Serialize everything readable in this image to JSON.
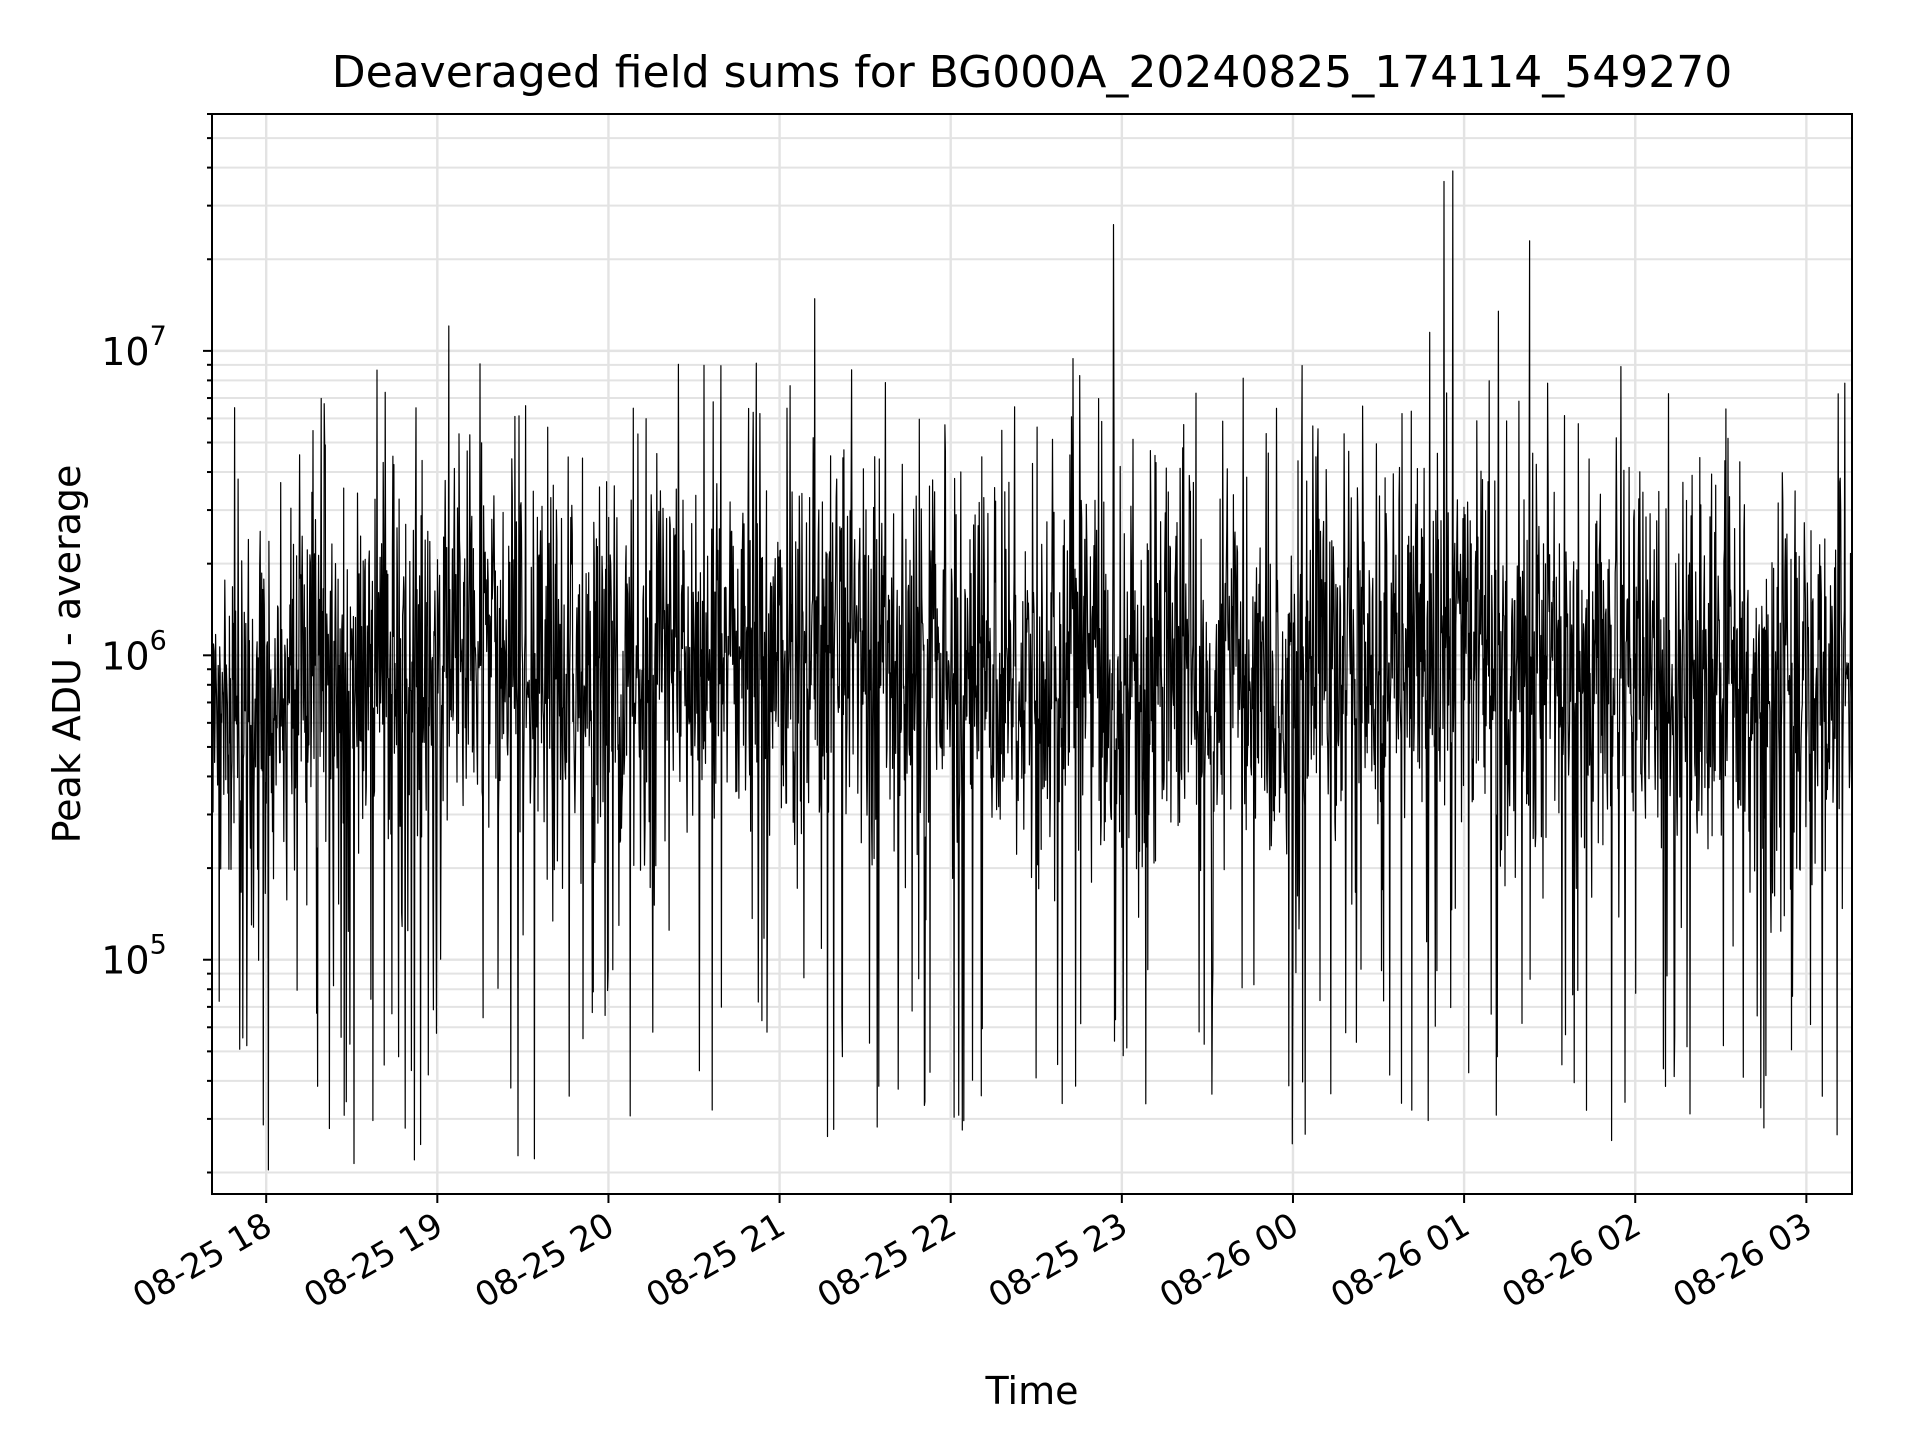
{
  "chart_data": {
    "type": "line",
    "title": "Deaveraged field sums for BG000A_20240825_174114_549270",
    "xlabel": "Time",
    "ylabel": "Peak ADU - average",
    "yscale": "log",
    "ylim": [
      17000,
      60000000
    ],
    "xlim": [
      "2024-08-25 17:41",
      "2024-08-26 03:16"
    ],
    "grid": true,
    "x_tick_labels": [
      "08-25 18",
      "08-25 19",
      "08-25 20",
      "08-25 21",
      "08-25 22",
      "08-25 23",
      "08-26 00",
      "08-26 01",
      "08-26 02",
      "08-26 03"
    ],
    "y_ticks": [
      {
        "base": "10",
        "exp": "5",
        "value": 100000
      },
      {
        "base": "10",
        "exp": "6",
        "value": 1000000
      },
      {
        "base": "10",
        "exp": "7",
        "value": 10000000
      }
    ],
    "series": [
      {
        "color": "#000000",
        "x": [
          "2024-08-25 17:41",
          "2024-08-25 17:50",
          "2024-08-25 18:00",
          "2024-08-25 18:10",
          "2024-08-25 18:20",
          "2024-08-25 18:30",
          "2024-08-25 18:40",
          "2024-08-25 18:50",
          "2024-08-25 19:00",
          "2024-08-25 19:10",
          "2024-08-25 19:20",
          "2024-08-25 19:30",
          "2024-08-25 19:40",
          "2024-08-25 19:50",
          "2024-08-25 20:00",
          "2024-08-25 20:10",
          "2024-08-25 20:20",
          "2024-08-25 20:30",
          "2024-08-25 20:40",
          "2024-08-25 20:50",
          "2024-08-25 21:00",
          "2024-08-25 21:10",
          "2024-08-25 21:20",
          "2024-08-25 21:30",
          "2024-08-25 21:40",
          "2024-08-25 21:50",
          "2024-08-25 22:00",
          "2024-08-25 22:10",
          "2024-08-25 22:20",
          "2024-08-25 22:30",
          "2024-08-25 22:40",
          "2024-08-25 22:50",
          "2024-08-25 23:00",
          "2024-08-25 23:10",
          "2024-08-25 23:20",
          "2024-08-25 23:30",
          "2024-08-25 23:40",
          "2024-08-25 23:50",
          "2024-08-26 00:00",
          "2024-08-26 00:10",
          "2024-08-26 00:20",
          "2024-08-26 00:30",
          "2024-08-26 00:40",
          "2024-08-26 00:50",
          "2024-08-26 01:00",
          "2024-08-26 01:10",
          "2024-08-26 01:20",
          "2024-08-26 01:30",
          "2024-08-26 01:40",
          "2024-08-26 01:50",
          "2024-08-26 02:00",
          "2024-08-26 02:10",
          "2024-08-26 02:20",
          "2024-08-26 02:30",
          "2024-08-26 02:40",
          "2024-08-26 02:50",
          "2024-08-26 03:00",
          "2024-08-26 03:10",
          "2024-08-26 03:16"
        ],
        "y": [
          800000,
          600000,
          450000,
          900000,
          1100000,
          700000,
          1200000,
          800000,
          900000,
          1000000,
          1100000,
          700000,
          800000,
          900000,
          1000000,
          800000,
          1200000,
          900000,
          1100000,
          1000000,
          900000,
          800000,
          1000000,
          1100000,
          900000,
          800000,
          1000000,
          900000,
          1000000,
          800000,
          900000,
          1100000,
          700000,
          800000,
          900000,
          700000,
          1000000,
          800000,
          900000,
          1000000,
          900000,
          800000,
          1000000,
          1100000,
          1200000,
          1000000,
          900000,
          1000000,
          800000,
          900000,
          1000000,
          900000,
          800000,
          900000,
          700000,
          600000,
          800000,
          900000,
          800000
        ]
      }
    ],
    "notable_values": [
      {
        "x": "2024-08-25 22:57",
        "y": 26000000
      },
      {
        "x": "2024-08-26 00:53",
        "y": 36000000
      },
      {
        "x": "2024-08-26 00:56",
        "y": 39000000
      },
      {
        "x": "2024-08-26 01:23",
        "y": 23000000
      },
      {
        "x": "2024-08-26 01:12",
        "y": 13500000
      },
      {
        "x": "2024-08-26 00:48",
        "y": 11500000
      },
      {
        "x": "2024-08-25 18:52",
        "y": 22000
      }
    ]
  }
}
